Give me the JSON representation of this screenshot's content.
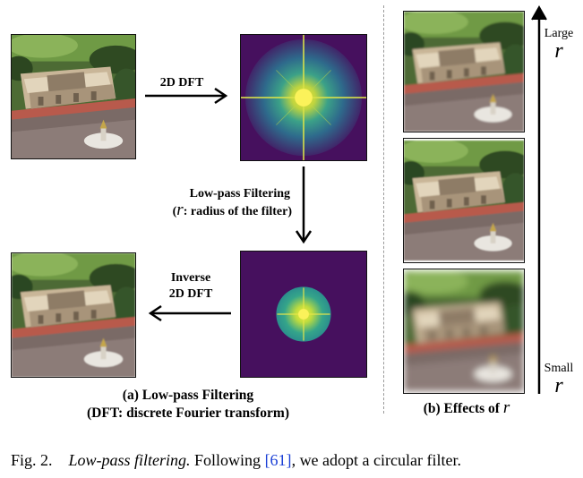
{
  "panel_a": {
    "arrow_dft": "2D DFT",
    "arrow_filter_line1": "Low-pass Filtering",
    "arrow_filter_line2_open": "(",
    "arrow_filter_symbol": "r",
    "arrow_filter_line2_rest": ": radius of the filter)",
    "arrow_inverse_line1": "Inverse",
    "arrow_inverse_line2": "2D DFT",
    "caption_line1": "(a) Low-pass Filtering",
    "caption_line2": "(DFT: discrete Fourier transform)"
  },
  "panel_b": {
    "top_label": "Large",
    "top_symbol": "r",
    "bottom_label": "Small",
    "bottom_symbol": "r",
    "caption_prefix": "(b) Effects of",
    "caption_symbol": "r"
  },
  "figure_caption": {
    "number": "Fig. 2.",
    "title": "Low-pass filtering.",
    "text_before_ref": "Following",
    "ref": "[61]",
    "text_after_ref": ", we adopt a circular filter."
  },
  "colors": {
    "spectrum_background": "#46105e",
    "spectrum_mid": "#2a8c8c",
    "spectrum_bright": "#f2e63a",
    "citation": "#1a3fd6"
  }
}
